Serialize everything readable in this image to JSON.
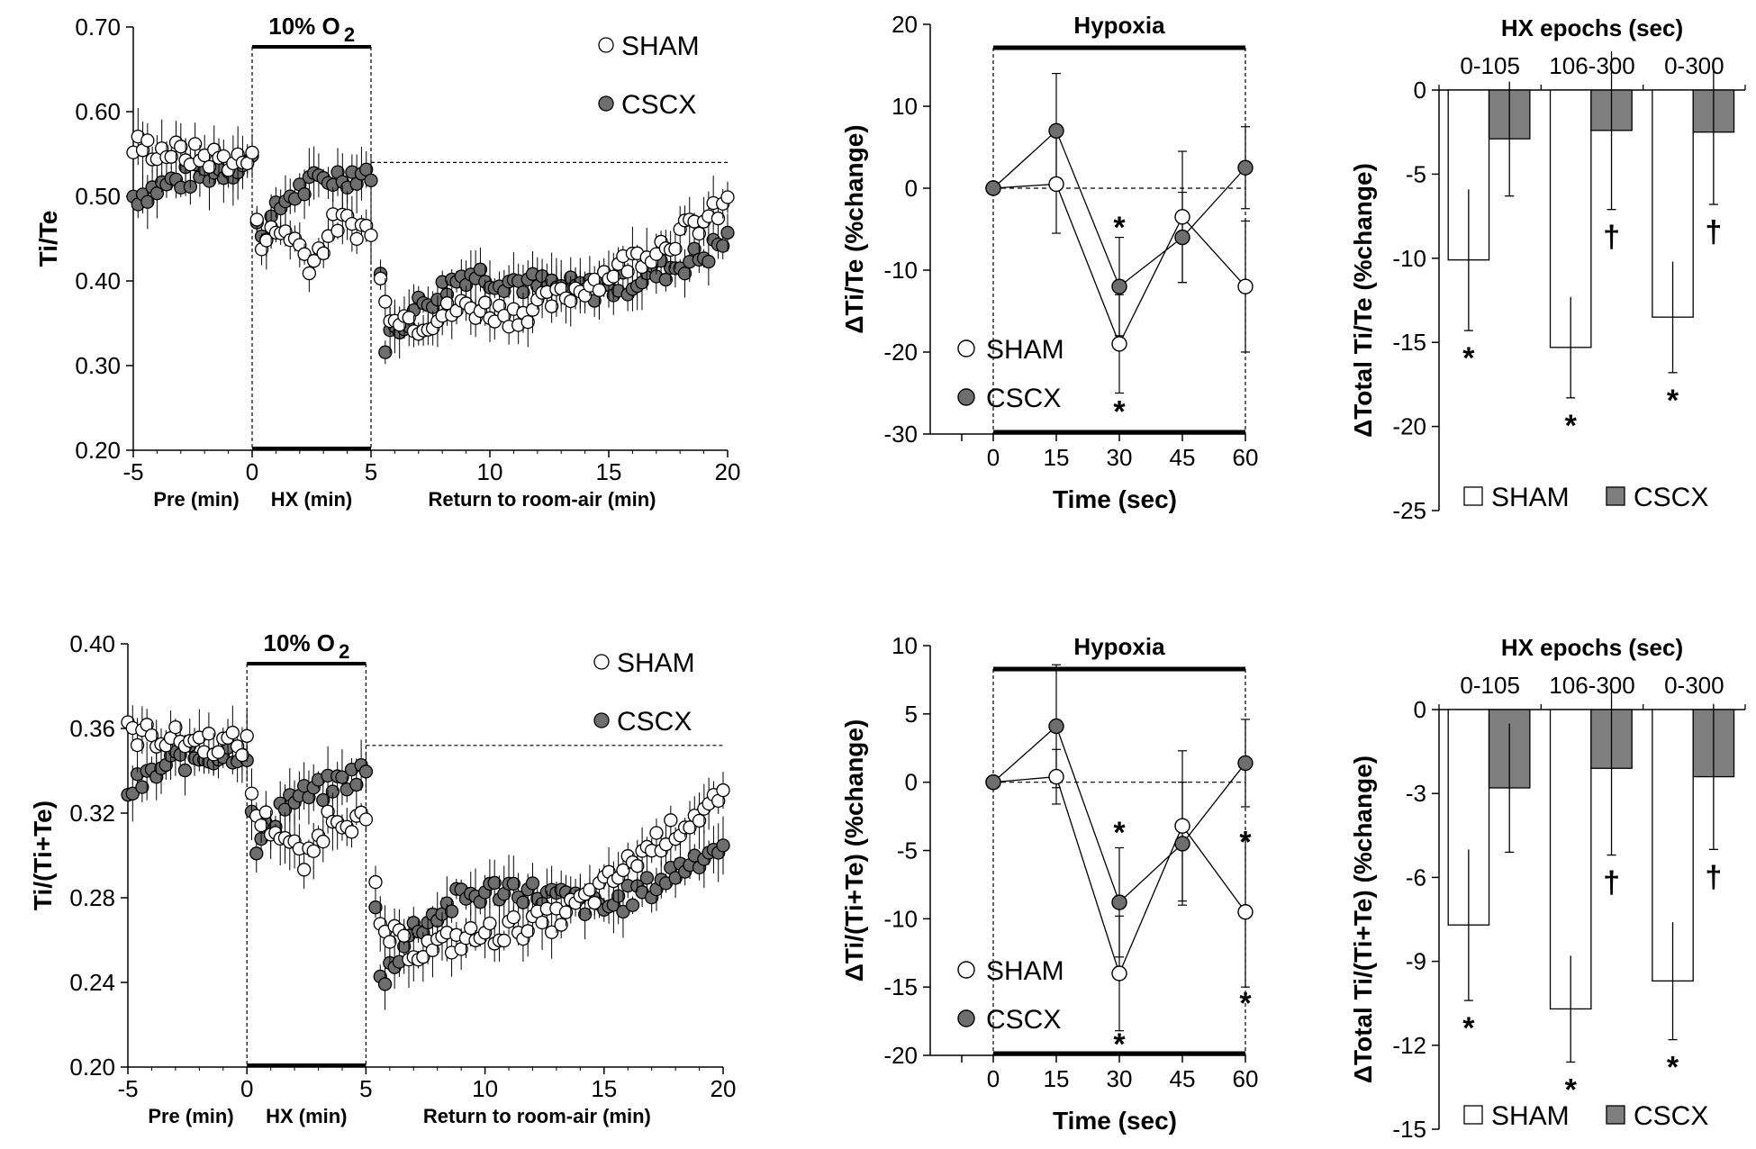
{
  "colors": {
    "sham_fill": "#ffffff",
    "cscx_fill": "#6e6e6e",
    "cscx_bar": "#7f7f7f",
    "line": "#000000"
  },
  "chart_data": [
    {
      "id": "A",
      "type": "scatter",
      "ylabel": "Ti/Te",
      "xlim": [
        -5,
        20
      ],
      "ylim": [
        0.2,
        0.7
      ],
      "xticks": [
        -5,
        0,
        5,
        10,
        15,
        20
      ],
      "yticks": [
        "0.20",
        "0.30",
        "0.40",
        "0.50",
        "0.60",
        "0.70"
      ],
      "yticks_num": [
        0.2,
        0.3,
        0.4,
        0.5,
        0.6,
        0.7
      ],
      "hypoxia_label": "10% O",
      "hypoxia_sub": "2",
      "hypoxia_range": [
        0,
        5
      ],
      "baseline": 0.54,
      "phase_labels": [
        "Pre (min)",
        "HX (min)",
        "Return to room-air (min)"
      ],
      "legend": [
        "SHAM",
        "CSCX"
      ],
      "sham_profile": [
        [
          -5,
          0.56
        ],
        [
          -3,
          0.55
        ],
        [
          0,
          0.54
        ],
        [
          0.3,
          0.45
        ],
        [
          1.5,
          0.46
        ],
        [
          2.5,
          0.42
        ],
        [
          3.5,
          0.47
        ],
        [
          5,
          0.46
        ],
        [
          5.6,
          0.37
        ],
        [
          7,
          0.35
        ],
        [
          9,
          0.37
        ],
        [
          11,
          0.36
        ],
        [
          13,
          0.38
        ],
        [
          15,
          0.41
        ],
        [
          17,
          0.44
        ],
        [
          19,
          0.47
        ],
        [
          20,
          0.49
        ]
      ],
      "cscx_profile": [
        [
          -5,
          0.5
        ],
        [
          -3,
          0.52
        ],
        [
          0,
          0.54
        ],
        [
          0.3,
          0.45
        ],
        [
          1.5,
          0.5
        ],
        [
          3,
          0.52
        ],
        [
          5,
          0.53
        ],
        [
          5.6,
          0.33
        ],
        [
          7,
          0.37
        ],
        [
          9,
          0.41
        ],
        [
          11,
          0.4
        ],
        [
          13,
          0.39
        ],
        [
          15,
          0.39
        ],
        [
          17,
          0.41
        ],
        [
          19,
          0.43
        ],
        [
          20,
          0.45
        ]
      ]
    },
    {
      "id": "B",
      "type": "line",
      "ylabel": "ΔTi/Te (%change)",
      "xlabel": "Time (sec)",
      "title": "Hypoxia",
      "x": [
        0,
        15,
        30,
        45,
        60
      ],
      "xticks": [
        "0",
        "15",
        "30",
        "45",
        "60"
      ],
      "ylim": [
        -30,
        20
      ],
      "yticks": [
        "-30",
        "-20",
        "-10",
        "0",
        "10",
        "20"
      ],
      "yticks_num": [
        -30,
        -20,
        -10,
        0,
        10,
        20
      ],
      "series": [
        {
          "name": "SHAM",
          "values": [
            0,
            0.5,
            -19,
            -3.5,
            -12
          ],
          "err": [
            0,
            6,
            6,
            8,
            8
          ]
        },
        {
          "name": "CSCX",
          "values": [
            0,
            7,
            -12,
            -6,
            2.5
          ],
          "err": [
            0,
            7,
            6,
            5.5,
            5
          ]
        }
      ],
      "stars": [
        {
          "x": 30,
          "y": -4.5,
          "t": "*"
        },
        {
          "x": 30,
          "y": -27,
          "t": "*"
        }
      ],
      "legend": [
        "SHAM",
        "CSCX"
      ]
    },
    {
      "id": "C",
      "type": "bar",
      "ylabel": "ΔTotal Ti/Te (%change)",
      "title": "HX epochs (sec)",
      "categories": [
        "0-105",
        "106-300",
        "0-300"
      ],
      "ylim": [
        -25,
        0
      ],
      "yticks": [
        "0",
        "-5",
        "-10",
        "-15",
        "-20",
        "-25"
      ],
      "yticks_num": [
        0,
        -5,
        -10,
        -15,
        -20,
        -25
      ],
      "series": [
        {
          "name": "SHAM",
          "values": [
            -10.1,
            -15.3,
            -13.5
          ],
          "err": [
            4.2,
            3.0,
            3.3
          ]
        },
        {
          "name": "CSCX",
          "values": [
            -2.9,
            -2.4,
            -2.5
          ],
          "err": [
            3.4,
            4.7,
            4.3
          ]
        }
      ],
      "marks": [
        {
          "cat": 0,
          "s": 0,
          "t": "*"
        },
        {
          "cat": 1,
          "s": 0,
          "t": "*"
        },
        {
          "cat": 2,
          "s": 0,
          "t": "*"
        },
        {
          "cat": 1,
          "s": 1,
          "t": "†"
        },
        {
          "cat": 2,
          "s": 1,
          "t": "†"
        }
      ],
      "legend": [
        "SHAM",
        "CSCX"
      ]
    },
    {
      "id": "D",
      "type": "scatter",
      "ylabel": "Ti/(Ti+Te)",
      "xlim": [
        -5,
        20
      ],
      "ylim": [
        0.2,
        0.4
      ],
      "xticks": [
        -5,
        0,
        5,
        10,
        15,
        20
      ],
      "yticks": [
        "0.20",
        "0.24",
        "0.28",
        "0.32",
        "0.36",
        "0.40"
      ],
      "yticks_num": [
        0.2,
        0.24,
        0.28,
        0.32,
        0.36,
        0.4
      ],
      "hypoxia_label": "10% O",
      "hypoxia_sub": "2",
      "hypoxia_range": [
        0,
        5
      ],
      "baseline": 0.352,
      "phase_labels": [
        "Pre (min)",
        "HX (min)",
        "Return to room-air (min)"
      ],
      "legend": [
        "SHAM",
        "CSCX"
      ],
      "sham_profile": [
        [
          -5,
          0.358
        ],
        [
          -3,
          0.355
        ],
        [
          0,
          0.352
        ],
        [
          0.3,
          0.32
        ],
        [
          1.5,
          0.31
        ],
        [
          2.5,
          0.295
        ],
        [
          3.5,
          0.32
        ],
        [
          5,
          0.315
        ],
        [
          5.6,
          0.265
        ],
        [
          7,
          0.255
        ],
        [
          9,
          0.26
        ],
        [
          11,
          0.265
        ],
        [
          13,
          0.27
        ],
        [
          15,
          0.285
        ],
        [
          17,
          0.305
        ],
        [
          19,
          0.32
        ],
        [
          20,
          0.325
        ]
      ],
      "cscx_profile": [
        [
          -5,
          0.33
        ],
        [
          -3,
          0.345
        ],
        [
          0,
          0.35
        ],
        [
          0.3,
          0.3
        ],
        [
          1.5,
          0.325
        ],
        [
          3,
          0.33
        ],
        [
          5,
          0.34
        ],
        [
          5.6,
          0.24
        ],
        [
          7,
          0.265
        ],
        [
          9,
          0.28
        ],
        [
          11,
          0.285
        ],
        [
          13,
          0.28
        ],
        [
          15,
          0.275
        ],
        [
          17,
          0.285
        ],
        [
          19,
          0.3
        ],
        [
          20,
          0.305
        ]
      ]
    },
    {
      "id": "E",
      "type": "line",
      "ylabel": "ΔTi/(Ti+Te) (%change)",
      "xlabel": "Time (sec)",
      "title": "Hypoxia",
      "x": [
        0,
        15,
        30,
        45,
        60
      ],
      "xticks": [
        "0",
        "15",
        "30",
        "45",
        "60"
      ],
      "ylim": [
        -20,
        10
      ],
      "yticks": [
        "-20",
        "-15",
        "-10",
        "-5",
        "0",
        "5",
        "10"
      ],
      "yticks_num": [
        -20,
        -15,
        -10,
        -5,
        0,
        5,
        10
      ],
      "series": [
        {
          "name": "SHAM",
          "values": [
            0,
            0.4,
            -14,
            -3.2,
            -9.5
          ],
          "err": [
            0,
            2,
            4.2,
            5.5,
            5.5
          ]
        },
        {
          "name": "CSCX",
          "values": [
            0,
            4.1,
            -8.8,
            -4.5,
            1.4
          ],
          "err": [
            0,
            4.5,
            4.0,
            4.5,
            3.2
          ]
        }
      ],
      "stars": [
        {
          "x": 30,
          "y": -3.5,
          "t": "*"
        },
        {
          "x": 30,
          "y": -19,
          "t": "*"
        },
        {
          "x": 60,
          "y": -4.2,
          "t": "*"
        },
        {
          "x": 60,
          "y": -16,
          "t": "*"
        }
      ],
      "legend": [
        "SHAM",
        "CSCX"
      ]
    },
    {
      "id": "F",
      "type": "bar",
      "ylabel": "ΔTotal Ti/(Ti+Te) (%change)",
      "title": "HX epochs (sec)",
      "categories": [
        "0-105",
        "106-300",
        "0-300"
      ],
      "ylim": [
        -15,
        0
      ],
      "yticks": [
        "0",
        "-3",
        "-6",
        "-9",
        "-12",
        "-15"
      ],
      "yticks_num": [
        0,
        -3,
        -6,
        -9,
        -12,
        -15
      ],
      "series": [
        {
          "name": "SHAM",
          "values": [
            -7.7,
            -10.7,
            -9.7
          ],
          "err": [
            2.7,
            1.9,
            2.1
          ]
        },
        {
          "name": "CSCX",
          "values": [
            -2.8,
            -2.1,
            -2.4
          ],
          "err": [
            2.3,
            3.1,
            2.6
          ]
        }
      ],
      "marks": [
        {
          "cat": 0,
          "s": 0,
          "t": "*"
        },
        {
          "cat": 1,
          "s": 0,
          "t": "*"
        },
        {
          "cat": 2,
          "s": 0,
          "t": "*"
        },
        {
          "cat": 1,
          "s": 1,
          "t": "†"
        },
        {
          "cat": 2,
          "s": 1,
          "t": "†"
        }
      ],
      "legend": [
        "SHAM",
        "CSCX"
      ]
    }
  ]
}
